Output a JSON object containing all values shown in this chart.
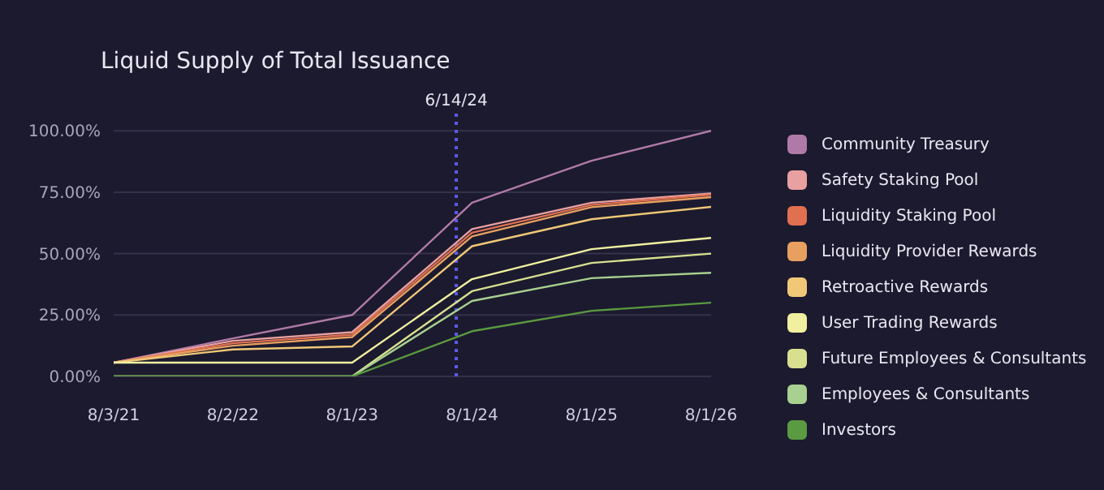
{
  "chart_data": {
    "type": "line",
    "title": "Liquid Supply of Total Issuance",
    "x": [
      "2021-08-03",
      "2022-08-02",
      "2023-08-01",
      "2024-08-01",
      "2025-08-01",
      "2026-08-01"
    ],
    "xticks": [
      {
        "value": "2021-08-03",
        "label": "8/3/21"
      },
      {
        "value": "2022-08-02",
        "label": "8/2/22"
      },
      {
        "value": "2023-08-01",
        "label": "8/1/23"
      },
      {
        "value": "2024-08-01",
        "label": "8/1/24"
      },
      {
        "value": "2025-08-01",
        "label": "8/1/25"
      },
      {
        "value": "2026-08-01",
        "label": "8/1/26"
      }
    ],
    "xlim": [
      "2021-08-03",
      "2026-08-01"
    ],
    "ylim": [
      0,
      107
    ],
    "yticks": [
      {
        "value": 0,
        "label": "0.00%"
      },
      {
        "value": 25,
        "label": "25.00%"
      },
      {
        "value": 50,
        "label": "50.00%"
      },
      {
        "value": 75,
        "label": "75.00%"
      },
      {
        "value": 100,
        "label": "100.00%"
      }
    ],
    "grid": "y",
    "legend": "right",
    "marker": "none",
    "line_style": "solid",
    "ref_lines": [
      {
        "axis": "x",
        "value": "2024-06-14",
        "label": "6/14/24",
        "color": "#5b5be8",
        "line_style": "dotted"
      }
    ],
    "series": [
      {
        "name": "Community Treasury",
        "color": "#b07aa8",
        "values": [
          5.6,
          15.5,
          25,
          70.7,
          87.8,
          100
        ]
      },
      {
        "name": "Safety Staking Pool",
        "color": "#e8a0a0",
        "values": [
          5.6,
          14.5,
          18,
          60,
          70.7,
          74.5
        ]
      },
      {
        "name": "Liquidity Staking Pool",
        "color": "#e07050",
        "values": [
          5.6,
          13.5,
          17,
          58.5,
          69.8,
          74
        ]
      },
      {
        "name": "Liquidity Provider Rewards",
        "color": "#e8a060",
        "values": [
          5.6,
          12.5,
          16,
          57,
          68.9,
          73
        ]
      },
      {
        "name": "Retroactive Rewards",
        "color": "#f0c878",
        "values": [
          5.6,
          11,
          12.2,
          53,
          64,
          69
        ]
      },
      {
        "name": "User Trading Rewards",
        "color": "#f0f0a0",
        "values": [
          5.6,
          5.6,
          5.6,
          39.6,
          51.8,
          56.4
        ]
      },
      {
        "name": "Future Employees & Consultants",
        "color": "#d8e090",
        "values": [
          0,
          0,
          0,
          34.7,
          46.2,
          50
        ]
      },
      {
        "name": "Employees & Consultants",
        "color": "#a8d090",
        "values": [
          0,
          0,
          0,
          30.7,
          40,
          42.2
        ]
      },
      {
        "name": "Investors",
        "color": "#5a9a40",
        "values": [
          0,
          0,
          0,
          18.4,
          26.7,
          30
        ]
      }
    ]
  }
}
